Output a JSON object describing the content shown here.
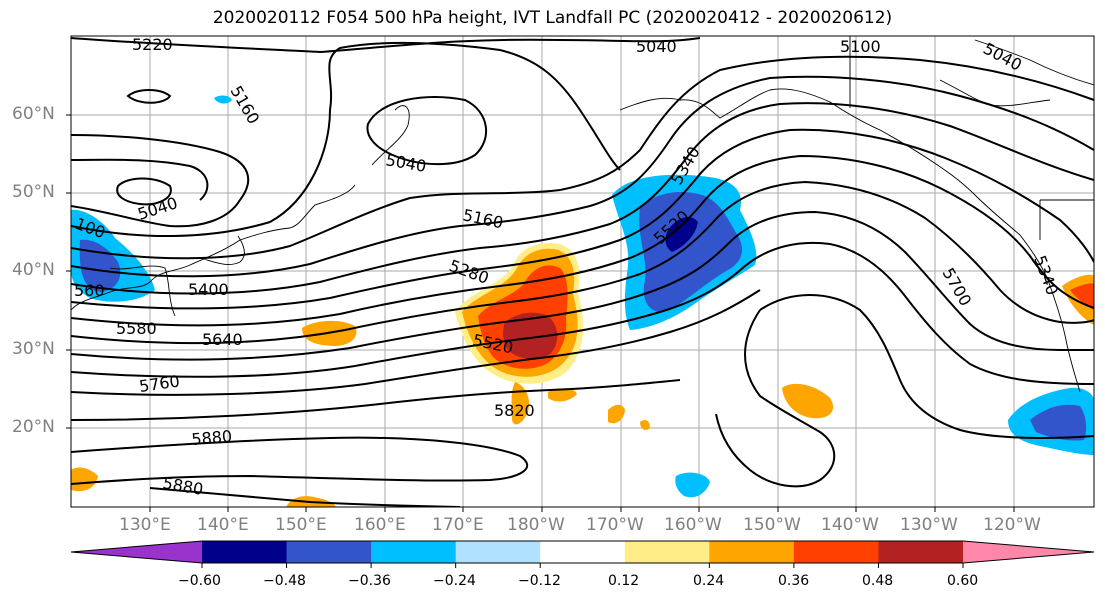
{
  "title": "2020020112 F054 500 hPa height, IVT Landfall PC (2020020412 - 2020020612)",
  "latitudes": [
    "60°N",
    "50°N",
    "40°N",
    "30°N",
    "20°N"
  ],
  "longitudes": [
    "130°E",
    "140°E",
    "150°E",
    "160°E",
    "170°E",
    "180°W",
    "170°W",
    "160°W",
    "150°W",
    "140°W",
    "130°W",
    "120°W"
  ],
  "contour_labels": [
    "5220",
    "5160",
    "5040",
    "5040",
    "5100",
    "5040",
    "5040",
    "5160",
    "5280",
    "5400",
    "5520",
    "5640",
    "5760",
    "5880",
    "5880",
    "5820",
    "5520",
    "5340",
    "5700",
    "5340",
    "100",
    "560",
    "5580"
  ],
  "colorbar": {
    "ticks": [
      "−0.60",
      "−0.48",
      "−0.36",
      "−0.24",
      "−0.12",
      "0.12",
      "0.24",
      "0.36",
      "0.48",
      "0.60"
    ],
    "colors": [
      "#9933cc",
      "#00008b",
      "#3355cc",
      "#00bfff",
      "#b0e2ff",
      "#ffffff",
      "#ffee88",
      "#ffa500",
      "#ff4000",
      "#b22222",
      "#ff88aa"
    ]
  },
  "icon": "map-globe"
}
